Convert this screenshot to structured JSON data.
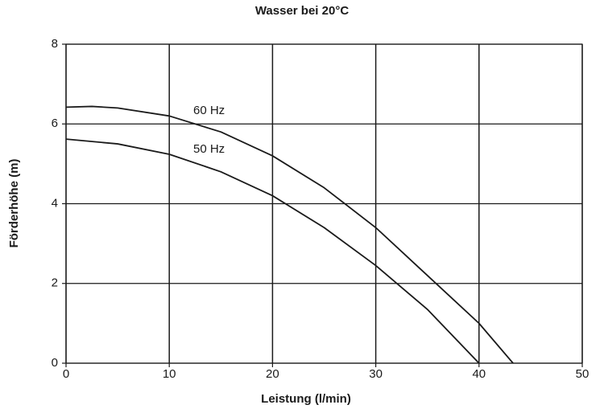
{
  "chart_data": {
    "type": "line",
    "title": "Wasser bei 20°C",
    "xlabel": "Leistung (l/min)",
    "ylabel": "Förderhöhe (m)",
    "xlim": [
      0,
      50
    ],
    "xticks": [
      0,
      10,
      20,
      30,
      40,
      50
    ],
    "ylim": [
      0,
      8
    ],
    "yticks": [
      0,
      2,
      4,
      6,
      8
    ],
    "grid": true,
    "series": [
      {
        "name": "60 Hz",
        "color": "#1a1a1a",
        "x": [
          0,
          2.5,
          5,
          10,
          15,
          20,
          25,
          30,
          35,
          40,
          43.3
        ],
        "values": [
          6.42,
          6.44,
          6.4,
          6.2,
          5.8,
          5.2,
          4.4,
          3.4,
          2.2,
          1.0,
          0
        ]
      },
      {
        "name": "50 Hz",
        "color": "#1a1a1a",
        "x": [
          0,
          5,
          10,
          15,
          20,
          25,
          30,
          35,
          40
        ],
        "values": [
          5.62,
          5.5,
          5.24,
          4.8,
          4.2,
          3.4,
          2.45,
          1.35,
          0
        ]
      }
    ]
  }
}
